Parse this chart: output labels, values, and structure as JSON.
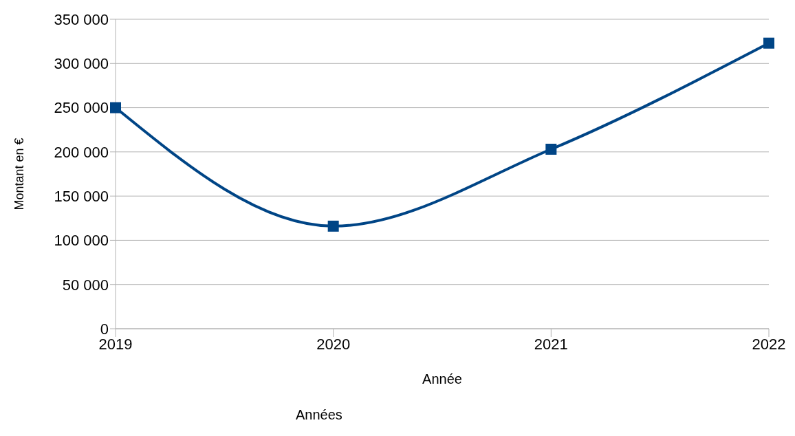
{
  "chart_data": {
    "type": "line",
    "xlabel": "Année",
    "ylabel": "Montant en €",
    "annotations": [
      "Années"
    ],
    "x": [
      2019,
      2020,
      2021,
      2022
    ],
    "series": [
      {
        "color": "#004586",
        "values": [
          250000,
          116000,
          203000,
          323000
        ]
      }
    ],
    "xlim": [
      2019,
      2022
    ],
    "xticks": [
      2019,
      2020,
      2021,
      2022
    ],
    "ylim": [
      0,
      350000
    ],
    "yticks": [
      {
        "value": 0,
        "label": "0"
      },
      {
        "value": 50000,
        "label": "50 000"
      },
      {
        "value": 100000,
        "label": "100 000"
      },
      {
        "value": 150000,
        "label": "150 000"
      },
      {
        "value": 200000,
        "label": "200 000"
      },
      {
        "value": 250000,
        "label": "250 000"
      },
      {
        "value": 300000,
        "label": "300 000"
      },
      {
        "value": 350000,
        "label": "350 000"
      }
    ],
    "grid": "y",
    "marker": "square",
    "line_style": "solid",
    "legend": false
  }
}
